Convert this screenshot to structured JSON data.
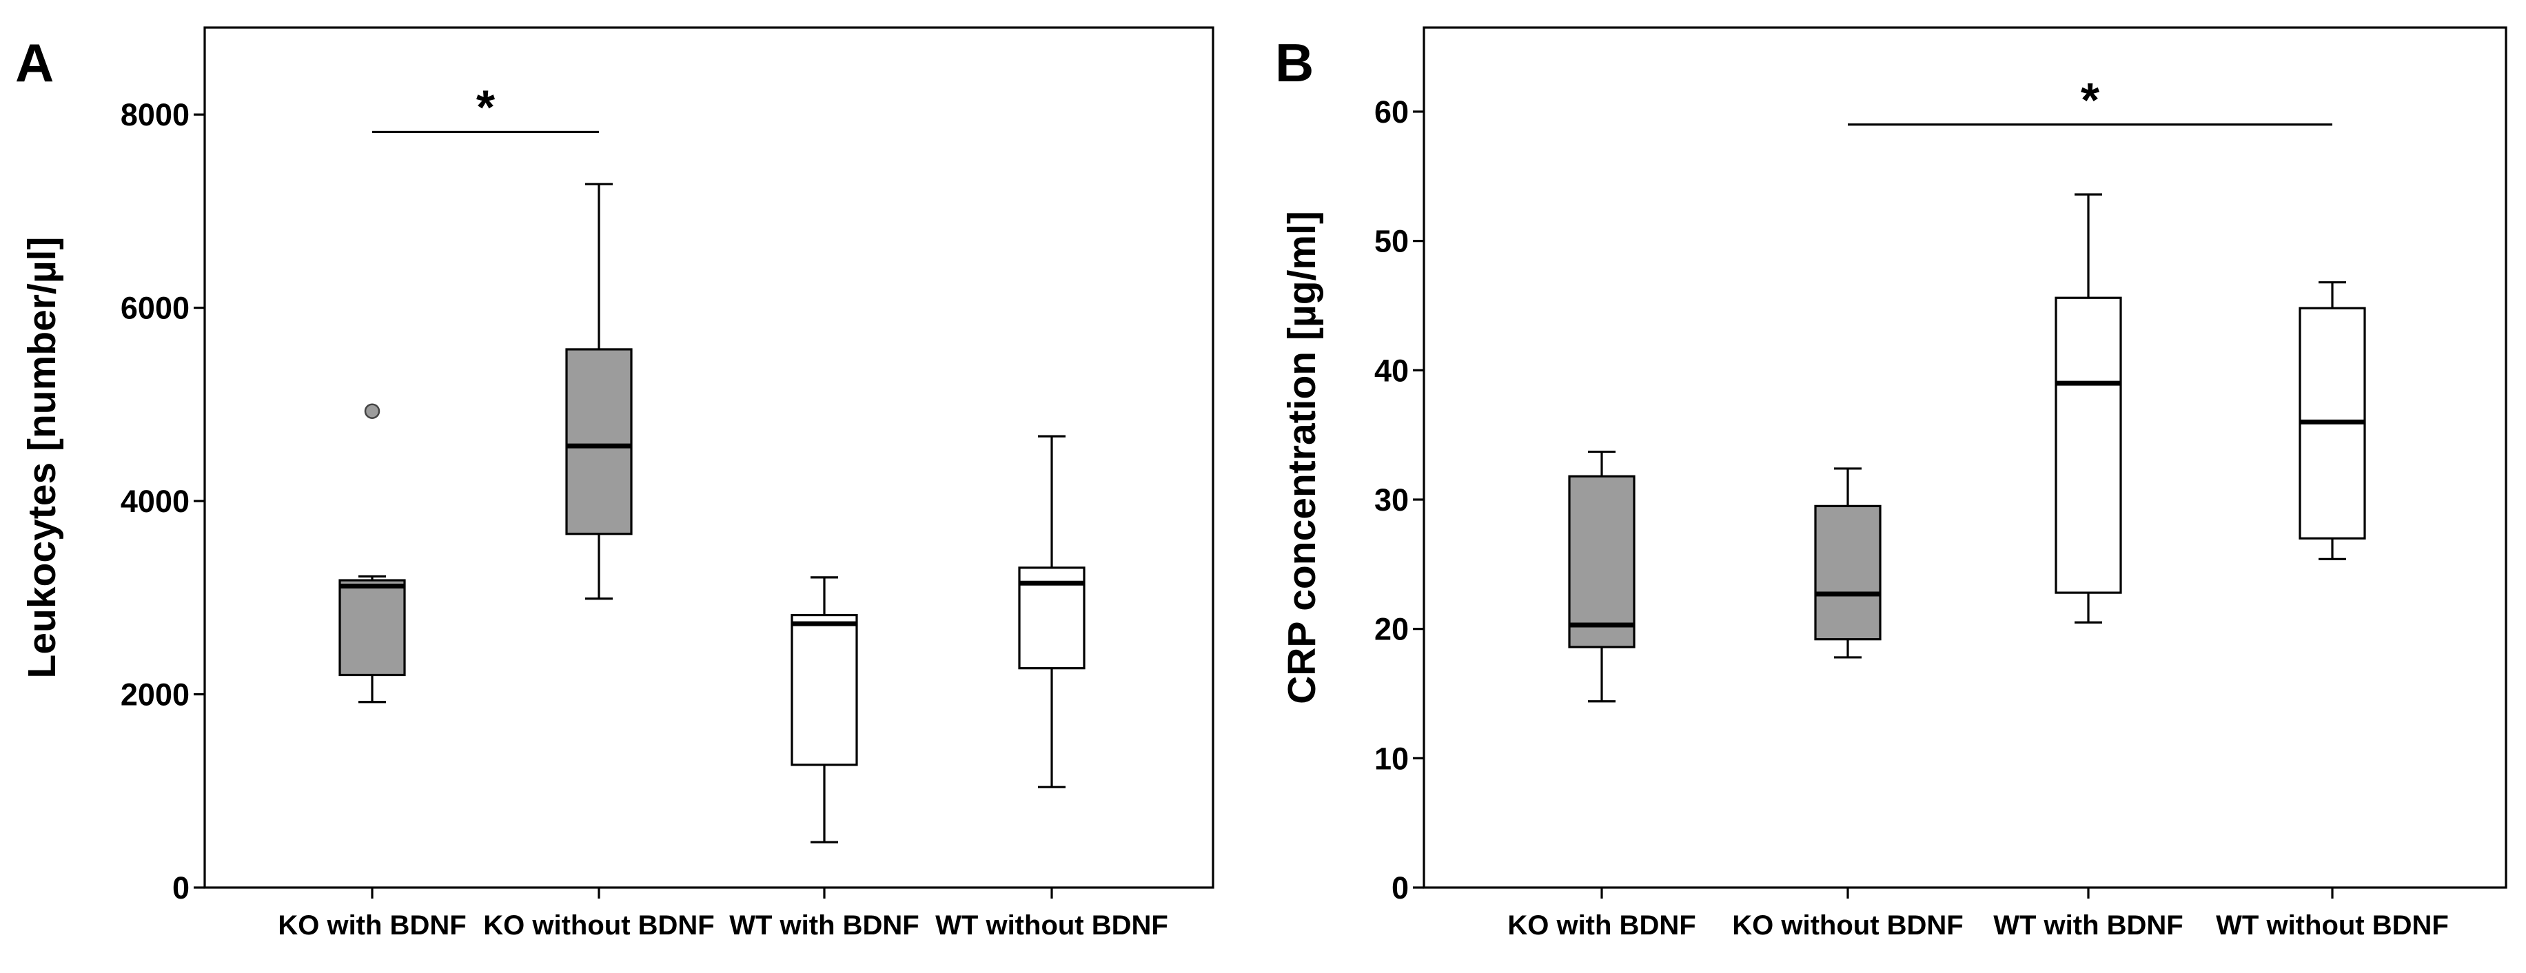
{
  "chart_data": [
    {
      "type": "box",
      "panel_label": "A",
      "title": "",
      "xlabel": "",
      "ylabel": "Leukocytes [number/µl]",
      "ylim": [
        0,
        8900
      ],
      "yticks": [
        0,
        2000,
        4000,
        6000,
        8000
      ],
      "categories": [
        "KO with BDNF",
        "KO without BDNF",
        "WT with BDNF",
        "WT without BDNF"
      ],
      "fill_colors": [
        "#9c9c9c",
        "#9c9c9c",
        "#ffffff",
        "#ffffff"
      ],
      "boxes": [
        {
          "category": "KO with BDNF",
          "whisker_low": 1920,
          "q1": 2200,
          "median": 3120,
          "q3": 3180,
          "whisker_high": 3220,
          "outliers": [
            4930
          ]
        },
        {
          "category": "KO without BDNF",
          "whisker_low": 2990,
          "q1": 3660,
          "median": 4570,
          "q3": 5570,
          "whisker_high": 7280,
          "outliers": []
        },
        {
          "category": "WT with BDNF",
          "whisker_low": 470,
          "q1": 1270,
          "median": 2730,
          "q3": 2820,
          "whisker_high": 3210,
          "outliers": []
        },
        {
          "category": "WT without BDNF",
          "whisker_low": 1040,
          "q1": 2270,
          "median": 3150,
          "q3": 3310,
          "whisker_high": 4670,
          "outliers": []
        }
      ],
      "significance": [
        {
          "from": 0,
          "to": 1,
          "y": 7820,
          "label": "*"
        }
      ]
    },
    {
      "type": "box",
      "panel_label": "B",
      "title": "",
      "xlabel": "",
      "ylabel": "CRP concentration [µg/ml]",
      "ylim": [
        0,
        66.5
      ],
      "yticks": [
        0,
        10,
        20,
        30,
        40,
        50,
        60
      ],
      "categories": [
        "KO with BDNF",
        "KO without BDNF",
        "WT with BDNF",
        "WT without BDNF"
      ],
      "fill_colors": [
        "#9c9c9c",
        "#9c9c9c",
        "#ffffff",
        "#ffffff"
      ],
      "boxes": [
        {
          "category": "KO with BDNF",
          "whisker_low": 14.4,
          "q1": 18.6,
          "median": 20.3,
          "q3": 31.8,
          "whisker_high": 33.7,
          "outliers": []
        },
        {
          "category": "KO without BDNF",
          "whisker_low": 17.8,
          "q1": 19.2,
          "median": 22.7,
          "q3": 29.5,
          "whisker_high": 32.4,
          "outliers": []
        },
        {
          "category": "WT with BDNF",
          "whisker_low": 20.5,
          "q1": 22.8,
          "median": 39.0,
          "q3": 45.6,
          "whisker_high": 53.6,
          "outliers": []
        },
        {
          "category": "WT without BDNF",
          "whisker_low": 25.4,
          "q1": 27.0,
          "median": 36.0,
          "q3": 44.8,
          "whisker_high": 46.8,
          "outliers": []
        }
      ],
      "significance": [
        {
          "from": 1,
          "to": 3,
          "y": 59.0,
          "label": "*"
        }
      ]
    }
  ]
}
